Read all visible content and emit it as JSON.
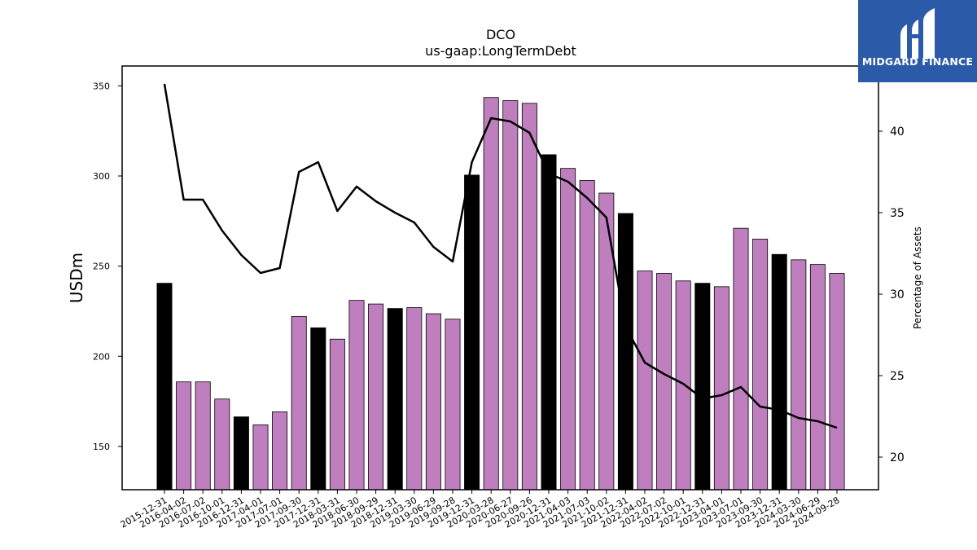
{
  "chart_data": {
    "type": "bar",
    "title": "DCO",
    "subtitle": "us-gaap:LongTermDebt",
    "ylabel": "USDm",
    "y2label": "Percentage of Assets",
    "ylim": [
      126,
      361
    ],
    "y2lim": [
      18,
      44
    ],
    "yticks": [
      150,
      200,
      250,
      300,
      350
    ],
    "y2ticks": [
      20,
      25,
      30,
      35,
      40
    ],
    "grid": false,
    "categories": [
      "2015-12-31",
      "2016-04-02",
      "2016-07-02",
      "2016-10-01",
      "2016-12-31",
      "2017-04-01",
      "2017-07-01",
      "2017-09-30",
      "2017-12-31",
      "2018-03-31",
      "2018-06-30",
      "2018-09-29",
      "2018-12-31",
      "2019-03-30",
      "2019-06-29",
      "2019-09-28",
      "2019-12-31",
      "2020-03-28",
      "2020-06-27",
      "2020-09-26",
      "2020-12-31",
      "2021-04-03",
      "2021-07-03",
      "2021-10-02",
      "2021-12-31",
      "2022-04-02",
      "2022-07-02",
      "2022-10-01",
      "2022-12-31",
      "2023-04-01",
      "2023-07-01",
      "2023-09-30",
      "2023-12-31",
      "2024-03-30",
      "2024-06-29",
      "2024-09-28"
    ],
    "series": [
      {
        "type": "bar",
        "axis": "left",
        "values": [
          240.5,
          185.8,
          185.8,
          176.3,
          166.4,
          162.0,
          169.2,
          222.1,
          215.8,
          209.5,
          231.0,
          229.0,
          226.5,
          227.0,
          223.6,
          220.6,
          300.5,
          343.5,
          341.8,
          340.3,
          311.8,
          304.2,
          297.5,
          290.5,
          279.2,
          247.3,
          246.0,
          241.8,
          240.5,
          238.6,
          271.0,
          265.0,
          256.5,
          253.5,
          250.9,
          246.0
        ],
        "colors": {
          "annual": "#000000",
          "quarterly": "#bf7fbf"
        }
      },
      {
        "type": "line",
        "axis": "right",
        "color": "#000000",
        "values": [
          42.9,
          35.8,
          35.8,
          33.9,
          32.4,
          31.3,
          31.6,
          37.5,
          38.1,
          35.1,
          36.6,
          35.7,
          35.0,
          34.4,
          32.9,
          32.0,
          38.1,
          40.8,
          40.6,
          39.9,
          37.4,
          36.9,
          35.9,
          34.7,
          28.0,
          25.8,
          25.1,
          24.5,
          23.6,
          23.8,
          24.3,
          23.1,
          22.9,
          22.4,
          22.2,
          21.8
        ]
      }
    ]
  },
  "logo": {
    "text": "MIDGARD FINANCE",
    "icon": "midgard-finance-logo-icon",
    "background": "#2b5aa8"
  }
}
